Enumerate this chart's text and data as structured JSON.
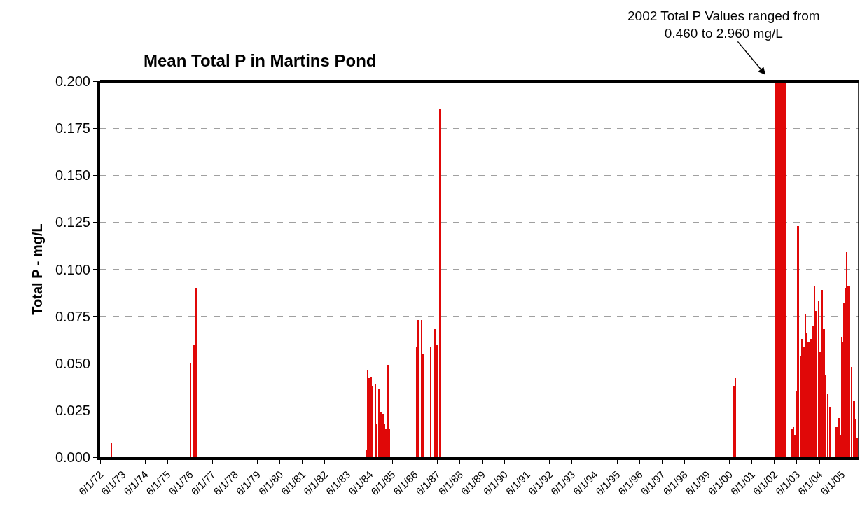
{
  "chart_data": {
    "type": "bar",
    "title": "Mean Total P in Martins Pond",
    "ylabel": "Total P - mg/L",
    "annotations": [
      "2002 Total P Values ranged from\n0.460 to 2.960 mg/L"
    ],
    "x": [
      "1972-12-01",
      "1976-06-06",
      "1976-08-10",
      "1976-09-12",
      "1984-04-02",
      "1984-04-27",
      "1984-05-22",
      "1984-06-28",
      "1984-07-16",
      "1984-08-29",
      "1984-09-16",
      "1984-10-26",
      "1984-11-24",
      "1984-12-27",
      "1985-01-19",
      "1985-02-13",
      "1985-03-28",
      "1985-04-16",
      "1986-07-08",
      "1986-07-30",
      "1986-09-17",
      "1986-10-19",
      "1987-02-14",
      "1987-04-22",
      "1987-05-26",
      "1987-07-12",
      "1987-07-27",
      "2000-08-07",
      "2000-09-02",
      "2002-07-04",
      "2002-08-01",
      "2002-08-29",
      "2002-09-26",
      "2002-10-24",
      "2002-11-21",
      "2003-03-10",
      "2003-04-09",
      "2003-04-27",
      "2003-05-24",
      "2003-06-20",
      "2003-08-01",
      "2003-08-24",
      "2003-09-19",
      "2003-10-12",
      "2003-11-07",
      "2003-12-07",
      "2004-01-11",
      "2004-02-14",
      "2004-03-16",
      "2004-04-11",
      "2004-05-19",
      "2004-06-11",
      "2004-07-11",
      "2004-08-15",
      "2004-09-10",
      "2004-10-15",
      "2004-11-22",
      "2005-03-08",
      "2005-04-07",
      "2005-05-08",
      "2005-06-03",
      "2005-06-18",
      "2005-07-10",
      "2005-07-29",
      "2005-08-21",
      "2005-09-13",
      "2005-10-05",
      "2005-11-04",
      "2005-12-16",
      "2006-01-19",
      "2006-02-10"
    ],
    "values": [
      0.008,
      0.05,
      0.06,
      0.09,
      0.004,
      0.046,
      0.042,
      0.043,
      0.038,
      0.039,
      0.018,
      0.036,
      0.024,
      0.023,
      0.018,
      0.015,
      0.049,
      0.015,
      0.059,
      0.073,
      0.073,
      0.055,
      0.059,
      0.068,
      0.06,
      0.185,
      0.06,
      0.038,
      0.042,
      0.2,
      0.2,
      0.2,
      0.2,
      0.2,
      0.2,
      0.015,
      0.016,
      0.012,
      0.035,
      0.123,
      0.054,
      0.063,
      0.059,
      0.076,
      0.066,
      0.061,
      0.063,
      0.07,
      0.091,
      0.078,
      0.083,
      0.056,
      0.089,
      0.068,
      0.044,
      0.034,
      0.027,
      0.016,
      0.021,
      0.012,
      0.064,
      0.061,
      0.082,
      0.09,
      0.109,
      0.091,
      0.091,
      0.048,
      0.03,
      0.02,
      0.01
    ],
    "color": "#e00808",
    "xlim": [
      "1972-06-01",
      "2006-02-28"
    ],
    "xticks": [
      {
        "value": "1972-06-01",
        "label": "6/1/72"
      },
      {
        "value": "1973-06-01",
        "label": "6/1/73"
      },
      {
        "value": "1974-06-01",
        "label": "6/1/74"
      },
      {
        "value": "1975-06-01",
        "label": "6/1/75"
      },
      {
        "value": "1976-06-01",
        "label": "6/1/76"
      },
      {
        "value": "1977-06-01",
        "label": "6/1/77"
      },
      {
        "value": "1978-06-01",
        "label": "6/1/78"
      },
      {
        "value": "1979-06-01",
        "label": "6/1/79"
      },
      {
        "value": "1980-06-01",
        "label": "6/1/80"
      },
      {
        "value": "1981-06-01",
        "label": "6/1/81"
      },
      {
        "value": "1982-06-01",
        "label": "6/1/82"
      },
      {
        "value": "1983-06-01",
        "label": "6/1/83"
      },
      {
        "value": "1984-06-01",
        "label": "6/1/84"
      },
      {
        "value": "1985-06-01",
        "label": "6/1/85"
      },
      {
        "value": "1986-06-01",
        "label": "6/1/86"
      },
      {
        "value": "1987-06-01",
        "label": "6/1/87"
      },
      {
        "value": "1988-06-01",
        "label": "6/1/88"
      },
      {
        "value": "1989-06-01",
        "label": "6/1/89"
      },
      {
        "value": "1990-06-01",
        "label": "6/1/90"
      },
      {
        "value": "1991-06-01",
        "label": "6/1/91"
      },
      {
        "value": "1992-06-01",
        "label": "6/1/92"
      },
      {
        "value": "1993-06-01",
        "label": "6/1/93"
      },
      {
        "value": "1994-06-01",
        "label": "6/1/94"
      },
      {
        "value": "1995-06-01",
        "label": "6/1/95"
      },
      {
        "value": "1996-06-01",
        "label": "6/1/96"
      },
      {
        "value": "1997-06-01",
        "label": "6/1/97"
      },
      {
        "value": "1998-06-01",
        "label": "6/1/98"
      },
      {
        "value": "1999-06-01",
        "label": "6/1/99"
      },
      {
        "value": "2000-06-01",
        "label": "6/1/00"
      },
      {
        "value": "2001-06-01",
        "label": "6/1/01"
      },
      {
        "value": "2002-06-01",
        "label": "6/1/02"
      },
      {
        "value": "2003-06-01",
        "label": "6/1/03"
      },
      {
        "value": "2004-06-01",
        "label": "6/1/04"
      },
      {
        "value": "2005-06-01",
        "label": "6/1/05"
      }
    ],
    "ylim": [
      0,
      0.2
    ],
    "yticks": [
      {
        "value": 0,
        "label": "0.000"
      },
      {
        "value": 0.025,
        "label": "0.025"
      },
      {
        "value": 0.05,
        "label": "0.050"
      },
      {
        "value": 0.075,
        "label": "0.075"
      },
      {
        "value": 0.1,
        "label": "0.100"
      },
      {
        "value": 0.125,
        "label": "0.125"
      },
      {
        "value": 0.15,
        "label": "0.150"
      },
      {
        "value": 0.175,
        "label": "0.175"
      },
      {
        "value": 0.2,
        "label": "0.200"
      }
    ],
    "grid": "y"
  }
}
